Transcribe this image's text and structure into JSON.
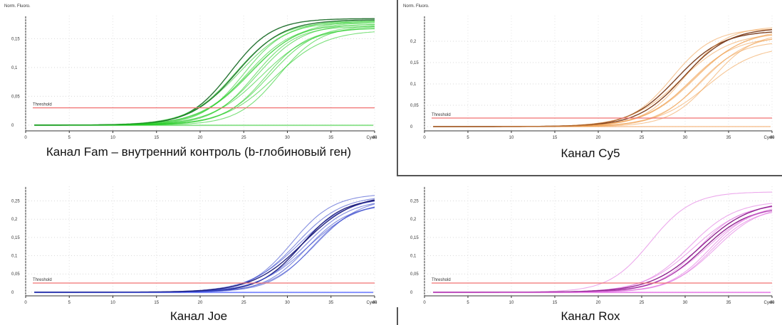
{
  "chart_data": [
    {
      "type": "line",
      "title": "Канал Fam – внутренний контроль (b-глобиновый ген)",
      "ylabel": "Norm. Fluoro.",
      "xlabel": "Cycle",
      "x_ticks": [
        "0",
        "5",
        "10",
        "15",
        "20",
        "25",
        "30",
        "35",
        "40",
        "Cycle"
      ],
      "y_ticks": [
        "0",
        "0,05",
        "0,1",
        "0,15"
      ],
      "xlim": [
        0,
        40
      ],
      "ylim": [
        -0.01,
        0.19
      ],
      "threshold": {
        "label": "Threshold",
        "value": 0.03,
        "color": "#f07070"
      },
      "series_color": "#22cc22",
      "dark_color": "#1c6e2a",
      "baseline_color": "#7fe07f",
      "curves": {
        "midpoints": [
          23.5,
          24.0,
          24.5,
          25.0,
          25.3,
          25.8,
          26.2,
          26.6,
          27.0,
          27.5,
          28.0,
          28.5,
          29.0,
          24.2,
          25.6
        ],
        "plateaus": [
          0.185,
          0.18,
          0.183,
          0.178,
          0.175,
          0.182,
          0.172,
          0.176,
          0.17,
          0.168,
          0.174,
          0.165,
          0.172,
          0.183,
          0.179
        ],
        "dark_indices": [
          0,
          13
        ],
        "flat_count": 2
      }
    },
    {
      "type": "line",
      "title": "Канал Cy5",
      "ylabel": "Norm. Fluoro.",
      "xlabel": "Cycle",
      "x_ticks": [
        "0",
        "5",
        "10",
        "15",
        "20",
        "25",
        "30",
        "35",
        "40",
        "Cycle"
      ],
      "y_ticks": [
        "0",
        "0,05",
        "0,1",
        "0,15",
        "0,2"
      ],
      "xlim": [
        0,
        40
      ],
      "ylim": [
        -0.01,
        0.26
      ],
      "threshold": {
        "label": "Threshold",
        "value": 0.02,
        "color": "#f07070"
      },
      "series_color": "#f0a050",
      "dark_color": "#7a3a18",
      "baseline_color": "#f4b070",
      "curves": {
        "midpoints": [
          28.5,
          29.0,
          29.5,
          30.0,
          30.5,
          31.0,
          31.5,
          32.0,
          32.5,
          33.0,
          29.8,
          31.2
        ],
        "plateaus": [
          0.23,
          0.225,
          0.22,
          0.235,
          0.21,
          0.225,
          0.2,
          0.215,
          0.19,
          0.22,
          0.232,
          0.228
        ],
        "dark_indices": [
          1,
          10
        ],
        "flat_count": 1
      }
    },
    {
      "type": "line",
      "title": "Канал Joe",
      "ylabel": "Norm. Fluoro.",
      "xlabel": "Cycle",
      "x_ticks": [
        "0",
        "5",
        "10",
        "15",
        "20",
        "25",
        "30",
        "35",
        "40",
        "Cycle"
      ],
      "y_ticks": [
        "0",
        "0,05",
        "0,1",
        "0,15",
        "0,2",
        "0,25"
      ],
      "xlim": [
        0,
        40
      ],
      "ylim": [
        -0.01,
        0.29
      ],
      "threshold": {
        "label": "Threshold",
        "value": 0.025,
        "color": "#f07070"
      },
      "series_color": "#3344cc",
      "dark_color": "#1a1a7a",
      "baseline_color": "#7080ff",
      "curves": {
        "midpoints": [
          30.5,
          31.0,
          31.3,
          31.6,
          32.0,
          32.4,
          32.8,
          33.2,
          31.8,
          32.2
        ],
        "plateaus": [
          0.27,
          0.265,
          0.262,
          0.258,
          0.255,
          0.25,
          0.245,
          0.26,
          0.268,
          0.24
        ],
        "dark_indices": [
          3,
          8
        ],
        "flat_count": 2
      }
    },
    {
      "type": "line",
      "title": "Канал Rox",
      "ylabel": "Norm. Fluoro.",
      "xlabel": "Cycle",
      "x_ticks": [
        "0",
        "5",
        "10",
        "15",
        "20",
        "25",
        "30",
        "35",
        "40",
        "Cycle"
      ],
      "y_ticks": [
        "0",
        "0,05",
        "0,1",
        "0,15",
        "0,2",
        "0,25"
      ],
      "xlim": [
        0,
        40
      ],
      "ylim": [
        -0.01,
        0.29
      ],
      "threshold": {
        "label": "Threshold",
        "value": 0.025,
        "color": "#f07070"
      },
      "series_color": "#e070e0",
      "dark_color": "#8a1a8a",
      "baseline_color": "#e880e8",
      "curves": {
        "midpoints": [
          26.0,
          30.5,
          31.0,
          31.5,
          32.0,
          32.5,
          33.0,
          33.5,
          31.8,
          32.8
        ],
        "plateaus": [
          0.275,
          0.25,
          0.245,
          0.24,
          0.235,
          0.245,
          0.23,
          0.24,
          0.25,
          0.235
        ],
        "dark_indices": [
          4,
          8
        ],
        "flat_count": 2
      }
    }
  ]
}
